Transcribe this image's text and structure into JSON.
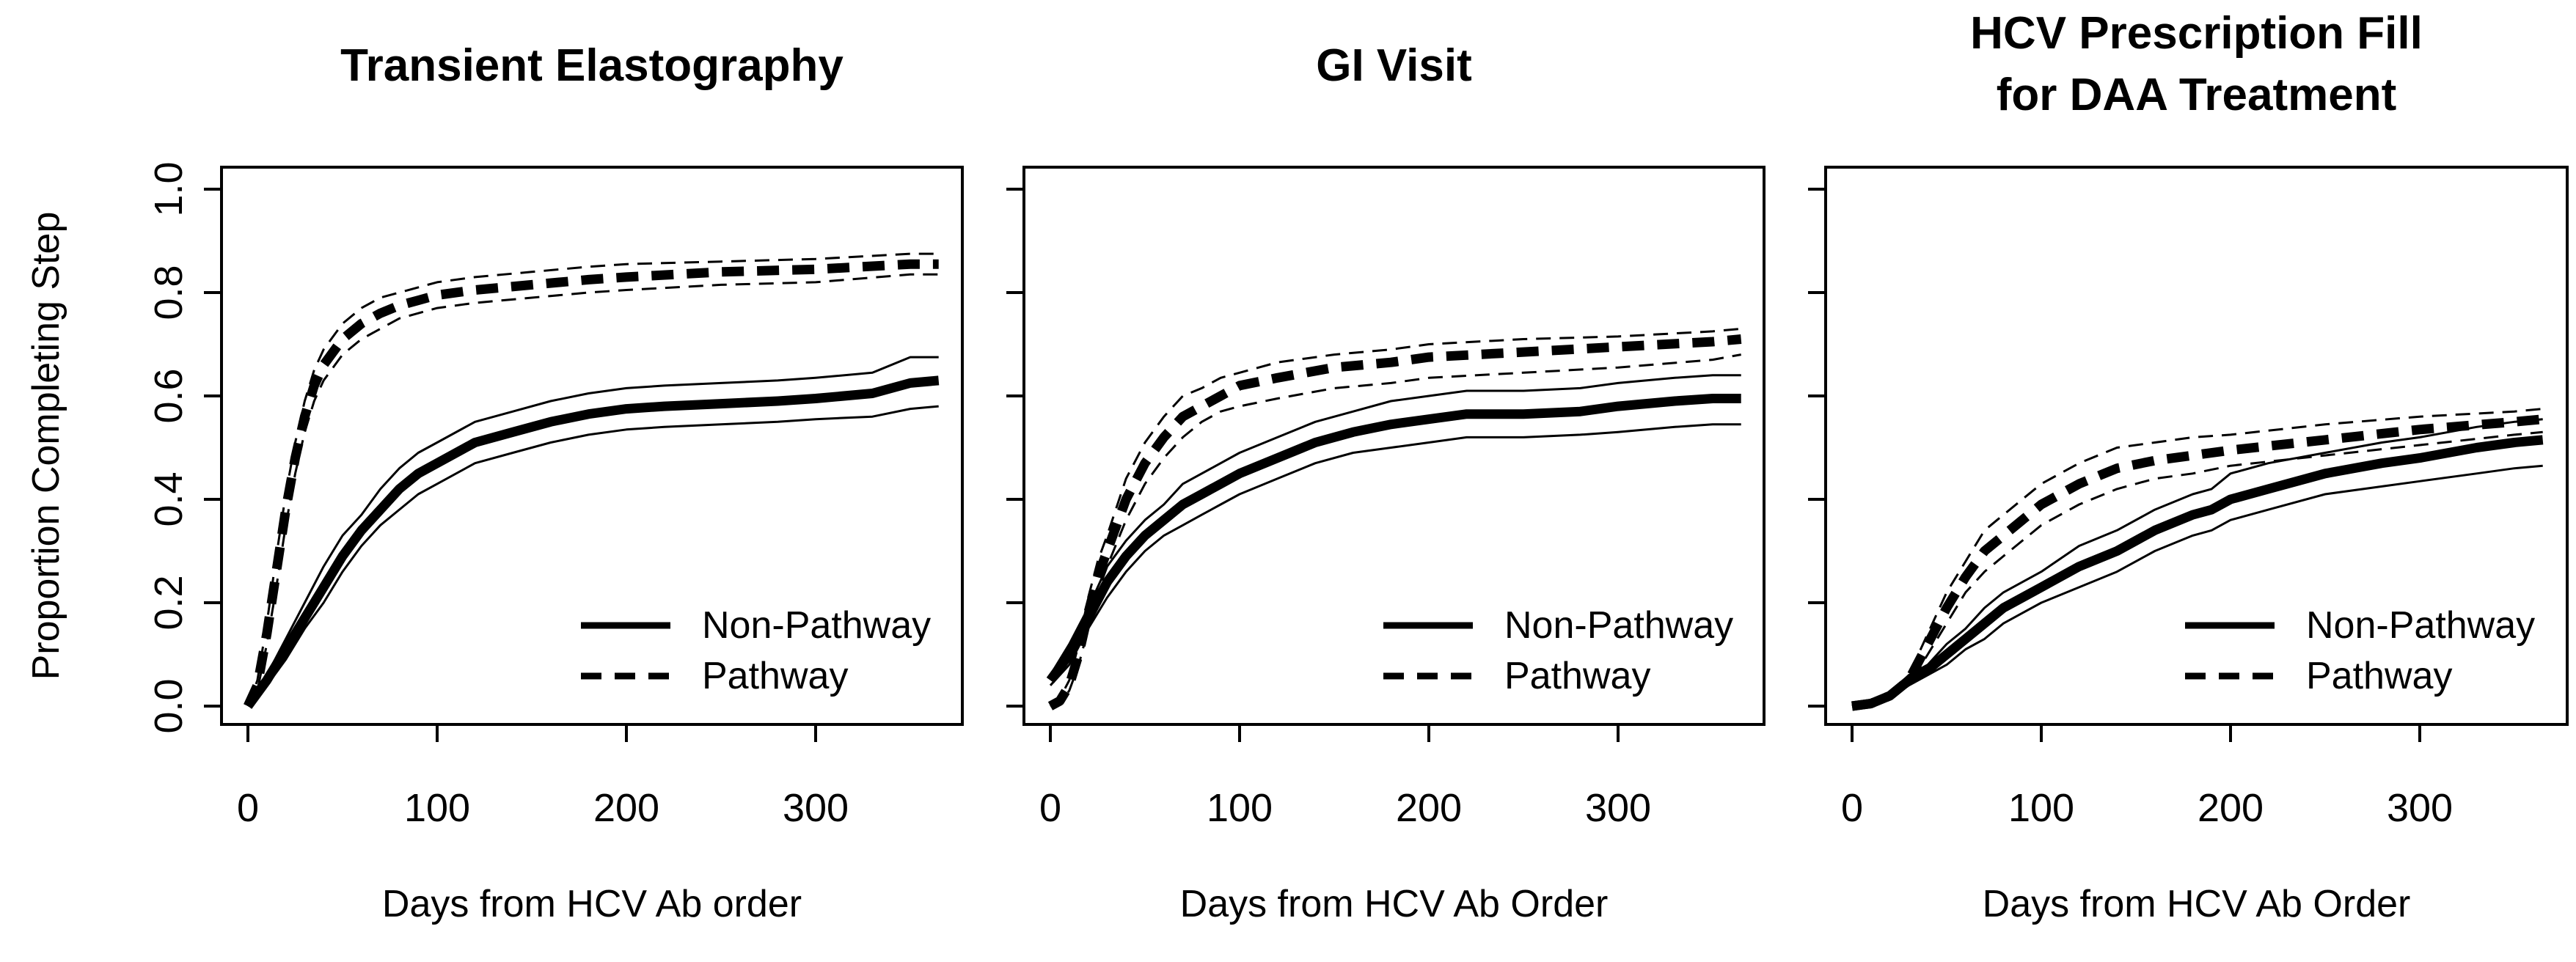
{
  "chart_data": [
    {
      "type": "line",
      "title": [
        "Transient Elastography"
      ],
      "xlabel": "Days from HCV Ab order",
      "ylabel": "Proportion Completing Step",
      "xlim": [
        0,
        365
      ],
      "ylim": [
        0,
        1.0
      ],
      "xticks": [
        "0",
        "100",
        "200",
        "300"
      ],
      "yticks": [
        "0.0",
        "0.2",
        "0.4",
        "0.6",
        "0.8",
        "1.0"
      ],
      "legend": {
        "position": "bottom-right",
        "entries": [
          "Non-Pathway",
          "Pathway"
        ]
      },
      "series": [
        {
          "name": "Non-Pathway",
          "style": "solid",
          "x": [
            0,
            10,
            20,
            30,
            40,
            50,
            60,
            70,
            80,
            90,
            100,
            120,
            140,
            160,
            180,
            200,
            220,
            250,
            280,
            300,
            330,
            350,
            365
          ],
          "y": [
            0.0,
            0.05,
            0.11,
            0.17,
            0.23,
            0.29,
            0.34,
            0.38,
            0.42,
            0.45,
            0.47,
            0.51,
            0.53,
            0.55,
            0.565,
            0.575,
            0.58,
            0.585,
            0.59,
            0.595,
            0.605,
            0.625,
            0.63
          ],
          "ci_lower": [
            0.0,
            0.04,
            0.09,
            0.15,
            0.2,
            0.26,
            0.31,
            0.35,
            0.38,
            0.41,
            0.43,
            0.47,
            0.49,
            0.51,
            0.525,
            0.535,
            0.54,
            0.545,
            0.55,
            0.555,
            0.56,
            0.575,
            0.58
          ],
          "ci_upper": [
            0.0,
            0.06,
            0.13,
            0.2,
            0.27,
            0.33,
            0.37,
            0.42,
            0.46,
            0.49,
            0.51,
            0.55,
            0.57,
            0.59,
            0.605,
            0.615,
            0.62,
            0.625,
            0.63,
            0.635,
            0.645,
            0.675,
            0.675
          ]
        },
        {
          "name": "Pathway",
          "style": "dashed",
          "x": [
            0,
            5,
            10,
            15,
            20,
            25,
            30,
            35,
            40,
            50,
            60,
            70,
            80,
            90,
            100,
            120,
            150,
            180,
            200,
            250,
            300,
            350,
            365
          ],
          "y": [
            0.0,
            0.04,
            0.14,
            0.26,
            0.38,
            0.48,
            0.56,
            0.62,
            0.66,
            0.71,
            0.74,
            0.76,
            0.775,
            0.785,
            0.795,
            0.805,
            0.815,
            0.825,
            0.83,
            0.84,
            0.845,
            0.855,
            0.855
          ],
          "ci_lower": [
            0.0,
            0.03,
            0.12,
            0.23,
            0.35,
            0.45,
            0.53,
            0.59,
            0.63,
            0.68,
            0.71,
            0.73,
            0.75,
            0.76,
            0.77,
            0.78,
            0.79,
            0.8,
            0.805,
            0.815,
            0.82,
            0.835,
            0.835
          ],
          "ci_upper": [
            0.0,
            0.05,
            0.16,
            0.29,
            0.41,
            0.51,
            0.59,
            0.65,
            0.69,
            0.74,
            0.77,
            0.79,
            0.8,
            0.81,
            0.82,
            0.83,
            0.84,
            0.85,
            0.855,
            0.86,
            0.865,
            0.875,
            0.875
          ]
        }
      ]
    },
    {
      "type": "line",
      "title": [
        "GI Visit"
      ],
      "xlabel": "Days from HCV Ab Order",
      "ylabel": "",
      "xlim": [
        0,
        365
      ],
      "ylim": [
        0,
        1.0
      ],
      "xticks": [
        "0",
        "100",
        "200",
        "300"
      ],
      "yticks": [],
      "legend": {
        "position": "bottom-right",
        "entries": [
          "Non-Pathway",
          "Pathway"
        ]
      },
      "series": [
        {
          "name": "Non-Pathway",
          "style": "solid",
          "x": [
            0,
            10,
            20,
            30,
            40,
            50,
            60,
            70,
            80,
            90,
            100,
            120,
            140,
            160,
            180,
            200,
            220,
            250,
            280,
            300,
            330,
            350,
            365
          ],
          "y": [
            0.05,
            0.1,
            0.17,
            0.24,
            0.29,
            0.33,
            0.36,
            0.39,
            0.41,
            0.43,
            0.45,
            0.48,
            0.51,
            0.53,
            0.545,
            0.555,
            0.565,
            0.565,
            0.57,
            0.58,
            0.59,
            0.595,
            0.595
          ],
          "ci_lower": [
            0.04,
            0.08,
            0.15,
            0.21,
            0.26,
            0.3,
            0.33,
            0.35,
            0.37,
            0.39,
            0.41,
            0.44,
            0.47,
            0.49,
            0.5,
            0.51,
            0.52,
            0.52,
            0.525,
            0.53,
            0.54,
            0.545,
            0.545
          ],
          "ci_upper": [
            0.06,
            0.12,
            0.19,
            0.27,
            0.32,
            0.36,
            0.39,
            0.43,
            0.45,
            0.47,
            0.49,
            0.52,
            0.55,
            0.57,
            0.59,
            0.6,
            0.61,
            0.61,
            0.615,
            0.625,
            0.635,
            0.64,
            0.64
          ]
        },
        {
          "name": "Pathway",
          "style": "dashed",
          "x": [
            0,
            5,
            10,
            15,
            20,
            25,
            30,
            40,
            50,
            60,
            70,
            80,
            90,
            100,
            120,
            150,
            180,
            200,
            250,
            300,
            350,
            365
          ],
          "y": [
            0.0,
            0.01,
            0.04,
            0.1,
            0.18,
            0.25,
            0.3,
            0.4,
            0.47,
            0.52,
            0.56,
            0.58,
            0.6,
            0.62,
            0.635,
            0.655,
            0.665,
            0.675,
            0.685,
            0.695,
            0.705,
            0.71
          ],
          "ci_lower": [
            0.0,
            0.005,
            0.03,
            0.08,
            0.15,
            0.22,
            0.27,
            0.36,
            0.43,
            0.48,
            0.52,
            0.55,
            0.57,
            0.58,
            0.595,
            0.615,
            0.625,
            0.635,
            0.645,
            0.655,
            0.67,
            0.68
          ],
          "ci_upper": [
            0.0,
            0.015,
            0.05,
            0.12,
            0.21,
            0.28,
            0.33,
            0.44,
            0.51,
            0.56,
            0.6,
            0.615,
            0.635,
            0.645,
            0.665,
            0.68,
            0.69,
            0.7,
            0.71,
            0.715,
            0.725,
            0.73
          ]
        }
      ]
    },
    {
      "type": "line",
      "title": [
        "HCV Prescription Fill",
        "for DAA Treatment"
      ],
      "xlabel": "Days from HCV Ab Order",
      "ylabel": "",
      "xlim": [
        0,
        365
      ],
      "ylim": [
        0,
        1.0
      ],
      "xticks": [
        "0",
        "100",
        "200",
        "300"
      ],
      "yticks": [],
      "legend": {
        "position": "bottom-right",
        "entries": [
          "Non-Pathway",
          "Pathway"
        ]
      },
      "series": [
        {
          "name": "Non-Pathway",
          "style": "solid",
          "x": [
            0,
            10,
            20,
            30,
            40,
            50,
            60,
            70,
            80,
            90,
            100,
            120,
            140,
            160,
            180,
            190,
            200,
            220,
            250,
            280,
            300,
            330,
            350,
            365
          ],
          "y": [
            0.0,
            0.005,
            0.02,
            0.05,
            0.07,
            0.1,
            0.13,
            0.16,
            0.19,
            0.21,
            0.23,
            0.27,
            0.3,
            0.34,
            0.37,
            0.38,
            0.4,
            0.42,
            0.45,
            0.47,
            0.48,
            0.5,
            0.51,
            0.515
          ],
          "ci_lower": [
            0.0,
            0.0,
            0.015,
            0.04,
            0.06,
            0.08,
            0.11,
            0.13,
            0.16,
            0.18,
            0.2,
            0.23,
            0.26,
            0.3,
            0.33,
            0.34,
            0.36,
            0.38,
            0.41,
            0.425,
            0.435,
            0.45,
            0.46,
            0.465
          ],
          "ci_upper": [
            0.0,
            0.01,
            0.025,
            0.06,
            0.08,
            0.12,
            0.15,
            0.19,
            0.22,
            0.24,
            0.26,
            0.31,
            0.34,
            0.38,
            0.41,
            0.42,
            0.45,
            0.47,
            0.49,
            0.51,
            0.52,
            0.54,
            0.55,
            0.555
          ]
        },
        {
          "name": "Pathway",
          "style": "dashed",
          "x": [
            0,
            10,
            20,
            30,
            40,
            50,
            60,
            70,
            80,
            90,
            100,
            120,
            140,
            160,
            180,
            200,
            250,
            300,
            350,
            365
          ],
          "y": [
            0.0,
            0.005,
            0.02,
            0.05,
            0.12,
            0.19,
            0.25,
            0.3,
            0.33,
            0.36,
            0.39,
            0.43,
            0.46,
            0.475,
            0.485,
            0.495,
            0.515,
            0.535,
            0.55,
            0.555
          ],
          "ci_lower": [
            0.0,
            0.0,
            0.015,
            0.04,
            0.1,
            0.16,
            0.22,
            0.26,
            0.29,
            0.32,
            0.35,
            0.39,
            0.42,
            0.44,
            0.45,
            0.465,
            0.485,
            0.505,
            0.525,
            0.53
          ],
          "ci_upper": [
            0.0,
            0.01,
            0.025,
            0.06,
            0.14,
            0.22,
            0.28,
            0.34,
            0.37,
            0.4,
            0.43,
            0.47,
            0.5,
            0.51,
            0.52,
            0.525,
            0.545,
            0.56,
            0.57,
            0.575
          ]
        }
      ]
    }
  ]
}
